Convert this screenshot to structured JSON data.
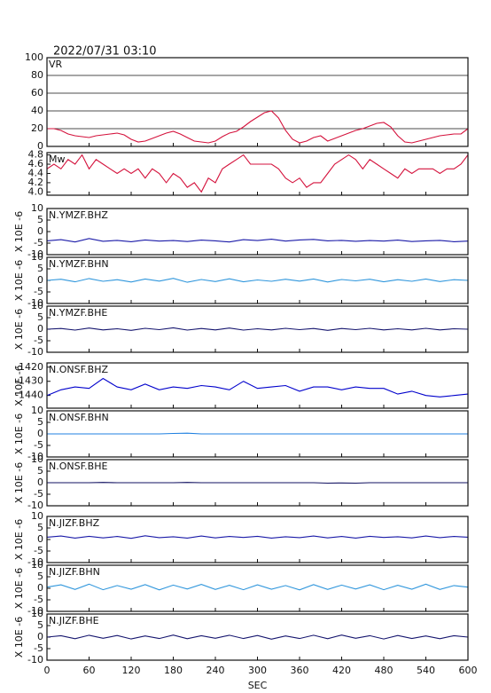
{
  "title": "2022/07/31 03:10",
  "chart_data": [
    {
      "type": "line",
      "title": "VR",
      "grid": true,
      "color": "#d4123c",
      "xlim": [
        0,
        600
      ],
      "ylim": [
        0,
        100
      ],
      "yticks": [
        0,
        20,
        40,
        60,
        80,
        100
      ],
      "x": [
        0,
        10,
        20,
        30,
        40,
        50,
        60,
        70,
        80,
        90,
        100,
        110,
        120,
        130,
        140,
        150,
        160,
        170,
        180,
        190,
        200,
        210,
        220,
        230,
        240,
        250,
        260,
        270,
        280,
        290,
        300,
        310,
        320,
        330,
        340,
        350,
        360,
        370,
        380,
        390,
        400,
        410,
        420,
        430,
        440,
        450,
        460,
        470,
        480,
        490,
        500,
        510,
        520,
        530,
        540,
        550,
        560,
        570,
        580,
        590,
        600
      ],
      "values": [
        20,
        20,
        18,
        14,
        12,
        11,
        10,
        12,
        13,
        14,
        15,
        13,
        8,
        5,
        6,
        9,
        12,
        15,
        17,
        14,
        10,
        6,
        5,
        4,
        6,
        11,
        15,
        17,
        22,
        28,
        33,
        38,
        40,
        32,
        18,
        8,
        4,
        6,
        10,
        12,
        6,
        9,
        12,
        15,
        18,
        20,
        23,
        26,
        27,
        22,
        12,
        5,
        4,
        6,
        8,
        10,
        12,
        13,
        14,
        14,
        20
      ]
    },
    {
      "type": "line",
      "title": "Mw",
      "grid": false,
      "color": "#d4123c",
      "xlim": [
        0,
        600
      ],
      "ylim": [
        3.93,
        4.85
      ],
      "yticks": [
        {
          "value": 4.0,
          "label": "4.0"
        },
        4.2,
        4.4,
        4.6,
        4.8
      ],
      "x": [
        0,
        10,
        20,
        30,
        40,
        50,
        60,
        70,
        80,
        90,
        100,
        110,
        120,
        130,
        140,
        150,
        160,
        170,
        180,
        190,
        200,
        210,
        220,
        230,
        240,
        250,
        260,
        270,
        280,
        290,
        300,
        310,
        320,
        330,
        340,
        350,
        360,
        370,
        380,
        390,
        400,
        410,
        420,
        430,
        440,
        450,
        460,
        470,
        480,
        490,
        500,
        510,
        520,
        530,
        540,
        550,
        560,
        570,
        580,
        590,
        600
      ],
      "values": [
        4.5,
        4.6,
        4.5,
        4.7,
        4.6,
        4.8,
        4.5,
        4.7,
        4.6,
        4.5,
        4.4,
        4.5,
        4.4,
        4.5,
        4.3,
        4.5,
        4.4,
        4.2,
        4.4,
        4.3,
        4.1,
        4.2,
        4.0,
        4.3,
        4.2,
        4.5,
        4.6,
        4.7,
        4.8,
        4.6,
        4.6,
        4.6,
        4.6,
        4.5,
        4.3,
        4.2,
        4.3,
        4.1,
        4.2,
        4.2,
        4.4,
        4.6,
        4.7,
        4.8,
        4.7,
        4.5,
        4.7,
        4.6,
        4.5,
        4.4,
        4.3,
        4.5,
        4.4,
        4.5,
        4.5,
        4.5,
        4.4,
        4.5,
        4.5,
        4.6,
        4.8
      ]
    },
    {
      "type": "line",
      "title": "N.YMZF.BHZ",
      "ylabel": "X 10E -6",
      "grid": false,
      "color": "#1a1aa8",
      "xlim": [
        0,
        600
      ],
      "ylim": [
        -10,
        10
      ],
      "yticks": [
        -10,
        -5,
        0,
        5,
        10
      ],
      "x": [
        0,
        20,
        40,
        60,
        80,
        100,
        120,
        140,
        160,
        180,
        200,
        220,
        240,
        260,
        280,
        300,
        320,
        340,
        360,
        380,
        400,
        420,
        440,
        460,
        480,
        500,
        520,
        540,
        560,
        580,
        600
      ],
      "values": [
        -4,
        -3.5,
        -4.5,
        -3,
        -4.2,
        -3.8,
        -4.4,
        -3.6,
        -4.1,
        -3.9,
        -4.3,
        -3.7,
        -4,
        -4.5,
        -3.5,
        -3.9,
        -3.3,
        -4.1,
        -3.6,
        -3.4,
        -4,
        -3.8,
        -4.2,
        -3.9,
        -4.1,
        -3.7,
        -4.3,
        -4,
        -3.8,
        -4.4,
        -4.1
      ]
    },
    {
      "type": "line",
      "title": "N.YMZF.BHN",
      "ylabel": "X 10E -6",
      "grid": false,
      "color": "#2f96dc",
      "xlim": [
        0,
        600
      ],
      "ylim": [
        -10,
        10
      ],
      "yticks": [
        -10,
        -5,
        0,
        5,
        10
      ],
      "x": [
        0,
        20,
        40,
        60,
        80,
        100,
        120,
        140,
        160,
        180,
        200,
        220,
        240,
        260,
        280,
        300,
        320,
        340,
        360,
        380,
        400,
        420,
        440,
        460,
        480,
        500,
        520,
        540,
        560,
        580,
        600
      ],
      "values": [
        0,
        0.5,
        -0.6,
        0.8,
        -0.4,
        0.3,
        -0.7,
        0.6,
        -0.3,
        0.9,
        -0.8,
        0.4,
        -0.5,
        0.7,
        -0.6,
        0.2,
        -0.4,
        0.5,
        -0.3,
        0.6,
        -0.7,
        0.4,
        -0.2,
        0.5,
        -0.6,
        0.3,
        -0.4,
        0.6,
        -0.5,
        0.3,
        0
      ]
    },
    {
      "type": "line",
      "title": "N.YMZF.BHE",
      "ylabel": "X 10E -6",
      "grid": false,
      "color": "#15156e",
      "xlim": [
        0,
        600
      ],
      "ylim": [
        -10,
        10
      ],
      "yticks": [
        -10,
        -5,
        0,
        5,
        10
      ],
      "x": [
        0,
        20,
        40,
        60,
        80,
        100,
        120,
        140,
        160,
        180,
        200,
        220,
        240,
        260,
        280,
        300,
        320,
        340,
        360,
        380,
        400,
        420,
        440,
        460,
        480,
        500,
        520,
        540,
        560,
        580,
        600
      ],
      "values": [
        0,
        0.3,
        -0.4,
        0.5,
        -0.3,
        0.2,
        -0.5,
        0.4,
        -0.2,
        0.6,
        -0.4,
        0.3,
        -0.3,
        0.5,
        -0.4,
        0.2,
        -0.3,
        0.4,
        -0.2,
        0.3,
        -0.5,
        0.3,
        -0.2,
        0.4,
        -0.3,
        0.2,
        -0.3,
        0.4,
        -0.3,
        0.2,
        0
      ]
    },
    {
      "type": "line",
      "title": "N.ONSF.BHZ",
      "ylabel": "X 10E -6",
      "grid": false,
      "color": "#0000cc",
      "xlim": [
        0,
        600
      ],
      "ylim": [
        -1449,
        -1417
      ],
      "yticks": [
        -1440,
        -1430,
        -1420
      ],
      "x": [
        0,
        20,
        40,
        60,
        80,
        100,
        120,
        140,
        160,
        180,
        200,
        220,
        240,
        260,
        280,
        300,
        320,
        340,
        360,
        380,
        400,
        420,
        440,
        460,
        480,
        500,
        520,
        540,
        560,
        580,
        600
      ],
      "values": [
        -1440,
        -1436,
        -1434,
        -1435,
        -1428,
        -1434,
        -1436,
        -1432,
        -1436,
        -1434,
        -1435,
        -1433,
        -1434,
        -1436,
        -1430,
        -1435,
        -1434,
        -1433,
        -1437,
        -1434,
        -1434,
        -1436,
        -1434,
        -1435,
        -1435,
        -1439,
        -1437,
        -1440,
        -1441,
        -1440,
        -1439
      ]
    },
    {
      "type": "line",
      "title": "N.ONSF.BHN",
      "ylabel": "X 10E -6",
      "grid": false,
      "color": "#2080e0",
      "xlim": [
        0,
        600
      ],
      "ylim": [
        -10,
        10
      ],
      "yticks": [
        -10,
        -5,
        0,
        5,
        10
      ],
      "x": [
        0,
        20,
        40,
        60,
        80,
        100,
        120,
        140,
        160,
        180,
        200,
        220,
        240,
        260,
        280,
        300,
        320,
        340,
        360,
        380,
        400,
        420,
        440,
        460,
        480,
        500,
        520,
        540,
        560,
        580,
        600
      ],
      "values": [
        0,
        0,
        0,
        0,
        0,
        0,
        0,
        0,
        0,
        0.2,
        0.3,
        0,
        0,
        0,
        0,
        0,
        0,
        0,
        0,
        0,
        0,
        0,
        0,
        0,
        0,
        0,
        0,
        0,
        0,
        0,
        0
      ]
    },
    {
      "type": "line",
      "title": "N.ONSF.BHE",
      "ylabel": "X 10E -6",
      "grid": false,
      "color": "#101060",
      "xlim": [
        0,
        600
      ],
      "ylim": [
        -10,
        10
      ],
      "yticks": [
        -10,
        -5,
        0,
        5,
        10
      ],
      "x": [
        0,
        20,
        40,
        60,
        80,
        100,
        120,
        140,
        160,
        180,
        200,
        220,
        240,
        260,
        280,
        300,
        320,
        340,
        360,
        380,
        400,
        420,
        440,
        460,
        480,
        500,
        520,
        540,
        560,
        580,
        600
      ],
      "values": [
        0,
        0,
        0,
        0,
        0.1,
        0,
        0,
        0,
        0,
        0,
        0.1,
        0,
        0,
        0,
        0,
        0,
        0,
        0,
        0,
        0,
        -0.2,
        -0.1,
        -0.2,
        0,
        0,
        0,
        0,
        0,
        0,
        0,
        0
      ]
    },
    {
      "type": "line",
      "title": "N.JIZF.BHZ",
      "ylabel": "X 10E -6",
      "grid": false,
      "color": "#1a1aa8",
      "xlim": [
        0,
        600
      ],
      "ylim": [
        -10,
        10
      ],
      "yticks": [
        -10,
        -5,
        0,
        5,
        10
      ],
      "x": [
        0,
        20,
        40,
        60,
        80,
        100,
        120,
        140,
        160,
        180,
        200,
        220,
        240,
        260,
        280,
        300,
        320,
        340,
        360,
        380,
        400,
        420,
        440,
        460,
        480,
        500,
        520,
        540,
        560,
        580,
        600
      ],
      "values": [
        1,
        1.5,
        0.6,
        1.4,
        0.7,
        1.3,
        0.5,
        1.6,
        0.8,
        1.2,
        0.6,
        1.5,
        0.7,
        1.3,
        0.9,
        1.4,
        0.6,
        1.2,
        0.8,
        1.5,
        0.7,
        1.3,
        0.6,
        1.4,
        0.9,
        1.2,
        0.7,
        1.5,
        0.8,
        1.3,
        1
      ]
    },
    {
      "type": "line",
      "title": "N.JIZF.BHN",
      "ylabel": "X 10E -6",
      "grid": false,
      "color": "#2f96dc",
      "xlim": [
        0,
        600
      ],
      "ylim": [
        -10,
        10
      ],
      "yticks": [
        -10,
        -5,
        0,
        5,
        10
      ],
      "x": [
        0,
        20,
        40,
        60,
        80,
        100,
        120,
        140,
        160,
        180,
        200,
        220,
        240,
        260,
        280,
        300,
        320,
        340,
        360,
        380,
        400,
        420,
        440,
        460,
        480,
        500,
        520,
        540,
        560,
        580,
        600
      ],
      "values": [
        0.5,
        1.5,
        -0.5,
        1.8,
        -0.6,
        1.2,
        -0.4,
        1.6,
        -0.7,
        1.4,
        -0.3,
        1.7,
        -0.5,
        1.3,
        -0.6,
        1.5,
        -0.4,
        1.2,
        -0.7,
        1.6,
        -0.5,
        1.4,
        -0.3,
        1.5,
        -0.6,
        1.3,
        -0.4,
        1.8,
        -0.5,
        1.2,
        0.5
      ]
    },
    {
      "type": "line",
      "title": "N.JIZF.BHE",
      "ylabel": "X 10E -6",
      "grid": false,
      "color": "#15156e",
      "xlim": [
        0,
        600
      ],
      "ylim": [
        -10,
        10
      ],
      "yticks": [
        -10,
        -5,
        0,
        5,
        10
      ],
      "xlabel": "SEC",
      "xticks": [
        0,
        60,
        120,
        180,
        240,
        300,
        360,
        420,
        480,
        540,
        600
      ],
      "x": [
        0,
        20,
        40,
        60,
        80,
        100,
        120,
        140,
        160,
        180,
        200,
        220,
        240,
        260,
        280,
        300,
        320,
        340,
        360,
        380,
        400,
        420,
        440,
        460,
        480,
        500,
        520,
        540,
        560,
        580,
        600
      ],
      "values": [
        0,
        0.6,
        -0.7,
        0.8,
        -0.5,
        0.7,
        -0.8,
        0.5,
        -0.6,
        0.9,
        -0.7,
        0.6,
        -0.5,
        0.8,
        -0.6,
        0.7,
        -0.9,
        0.5,
        -0.6,
        0.8,
        -0.7,
        0.9,
        -0.5,
        0.6,
        -0.8,
        0.7,
        -0.6,
        0.5,
        -0.7,
        0.6,
        0
      ]
    }
  ]
}
